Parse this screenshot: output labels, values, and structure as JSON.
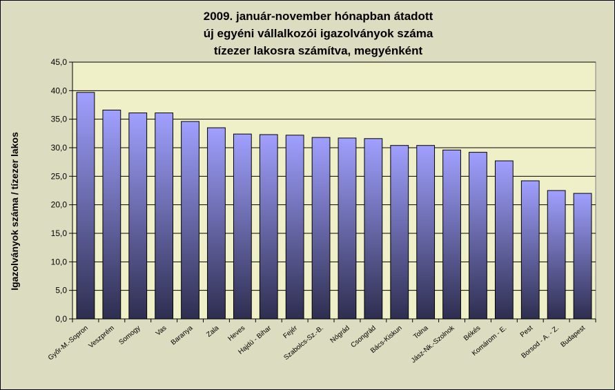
{
  "chart_data": {
    "type": "bar",
    "title_lines": [
      "2009. január-november hónapban átadott",
      "új egyéni vállalkozói  igazolványok száma",
      "tízezer lakosra számítva, megyénként"
    ],
    "xlabel": "",
    "ylabel": "Igazolványok száma / tízezer lakos",
    "ylim": [
      0,
      45
    ],
    "y_ticks": [
      "0,0",
      "5,0",
      "10,0",
      "15,0",
      "20,0",
      "25,0",
      "30,0",
      "35,0",
      "40,0",
      "45,0"
    ],
    "grid": true,
    "legend": "none",
    "categories": [
      "Győr-M.-Sopron",
      "Veszprém",
      "Somogy",
      "Vas",
      "Baranya",
      "Zala",
      "Heves",
      "Hajdú - Bihar",
      "Fejér",
      "Szabolcs-Sz.-B.",
      "Nógrád",
      "Csongrád",
      "Bács-Kiskun",
      "Tolna",
      "Jász-Nk.-Szolnok",
      "Békés",
      "Komárom - E.",
      "Pest",
      "Borsod - A. - Z.",
      "Budapest"
    ],
    "values": [
      39.7,
      36.6,
      36.1,
      36.1,
      34.6,
      33.5,
      32.4,
      32.3,
      32.2,
      31.8,
      31.7,
      31.6,
      30.4,
      30.4,
      29.6,
      29.2,
      27.7,
      24.2,
      22.5,
      22.0
    ],
    "colors": {
      "bar_top": "#a0a0ff",
      "bar_bottom": "#2e2e50",
      "plot_bg": "#f0f0c8",
      "page_bg": "#dcdcc0",
      "grid": "#000000"
    }
  }
}
